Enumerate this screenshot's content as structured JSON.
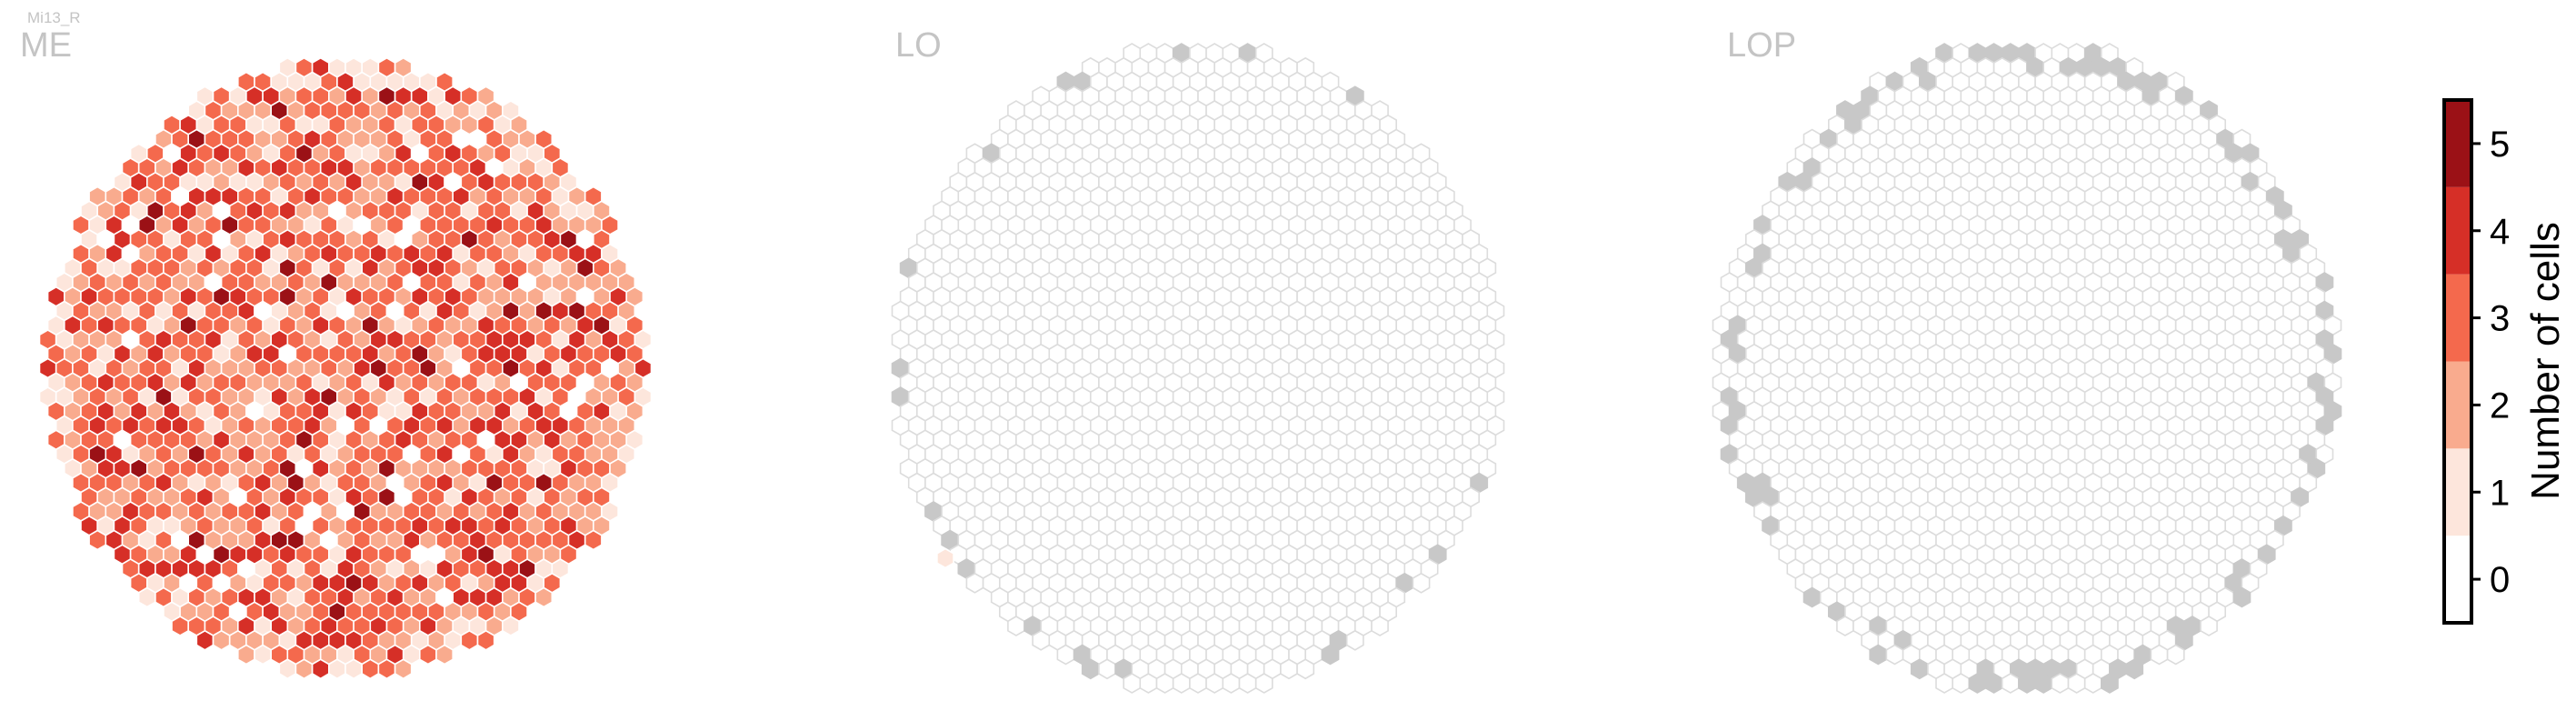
{
  "figure": {
    "cell_type": "Mi13_R",
    "colors": {
      "bins": [
        "#ffffff",
        "#fde6dc",
        "#f9ab8e",
        "#f4694d",
        "#d62f27",
        "#9b1116"
      ],
      "empty_column": "#c8c8c8",
      "hex_outline_empty": "#dcdcdc",
      "hex_outline_filled": "#ffffff"
    }
  },
  "chart_data": [
    {
      "type": "heatmap",
      "panel": "ME",
      "title": "ME",
      "description_of_values": "number of cells per column (hexagonal column grid); most columns 1-4, a few at 5",
      "value_distribution": {
        "0": "sparse",
        "1": "common",
        "2": "common",
        "3": "most common",
        "4": "common",
        "5": "rare"
      }
    },
    {
      "type": "heatmap",
      "panel": "LO",
      "title": "LO",
      "description_of_values": "nearly all columns empty (outline only); a few gray edge columns; one column with value 1"
    },
    {
      "type": "heatmap",
      "panel": "LOP",
      "title": "LOP",
      "description_of_values": "all interior columns empty (outline only); gray columns around the edge"
    }
  ],
  "colorbar": {
    "label": "Number of cells",
    "ticks": [
      "0",
      "1",
      "2",
      "3",
      "4",
      "5"
    ],
    "range": [
      -0.5,
      5.5
    ]
  }
}
